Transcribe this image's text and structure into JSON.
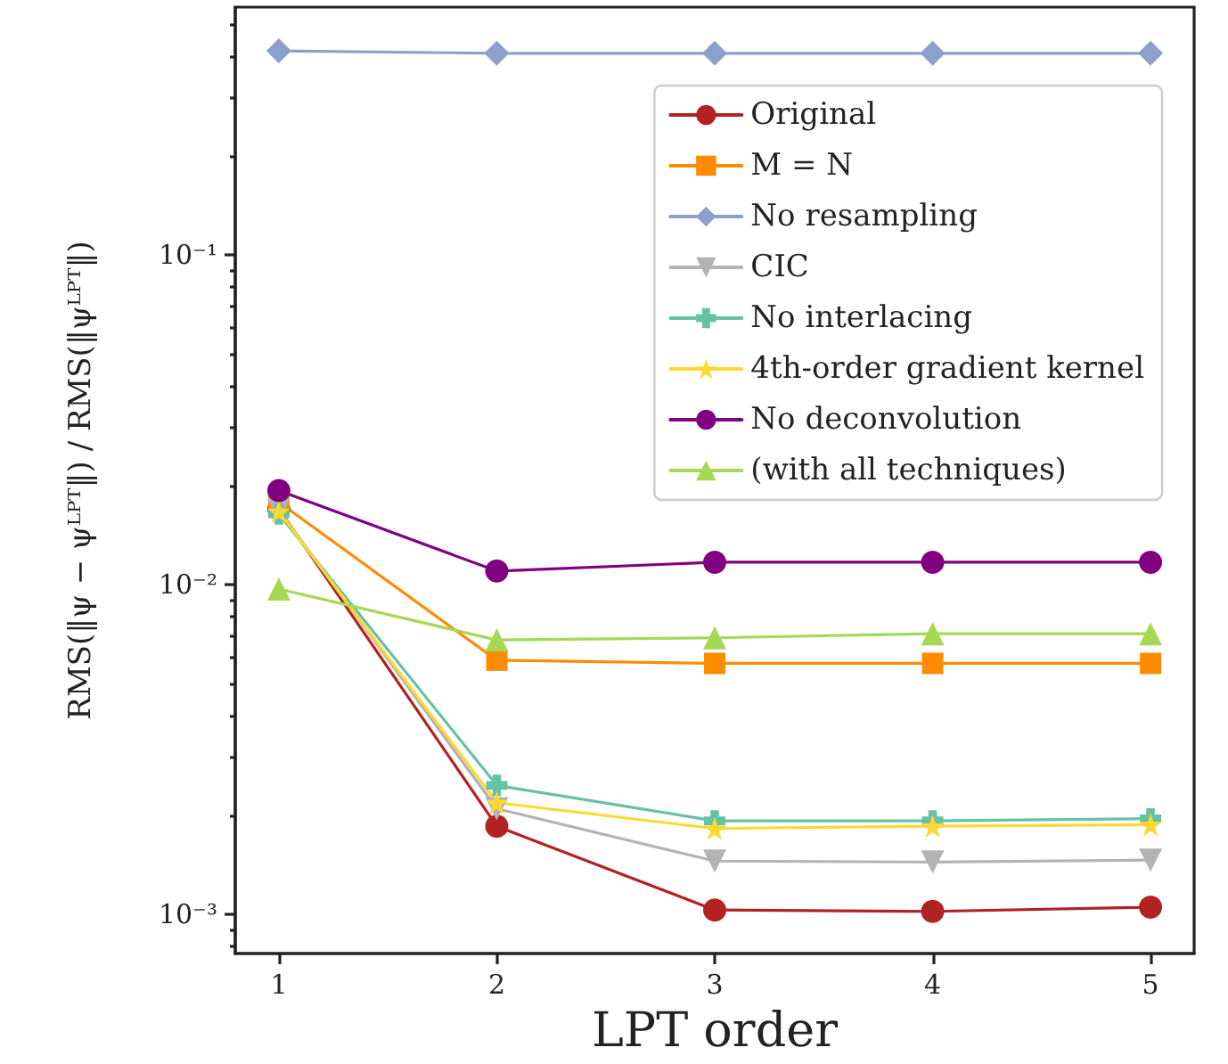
{
  "chart_data": {
    "type": "line",
    "xlabel": "LPT order",
    "ylabel": "RMS(‖ψ − ψᴸᴾᵀ‖) / RMS(‖ψᴸᴾᵀ‖)",
    "x": [
      1,
      2,
      3,
      4,
      5
    ],
    "series": [
      {
        "name": "Original",
        "color": "#b22222",
        "marker": "circle",
        "values": [
          0.017,
          0.00185,
          0.00103,
          0.00102,
          0.00105
        ]
      },
      {
        "name": "M = N",
        "color": "#ff8c00",
        "marker": "square",
        "values": [
          0.0178,
          0.0059,
          0.00577,
          0.00577,
          0.00577
        ]
      },
      {
        "name": "No resampling",
        "color": "#8da0cb",
        "marker": "diamond",
        "values": [
          0.417,
          0.41,
          0.41,
          0.41,
          0.41
        ]
      },
      {
        "name": "CIC",
        "color": "#b3b3b3",
        "marker": "triangle_down",
        "values": [
          0.0169,
          0.00209,
          0.00145,
          0.00144,
          0.00146
        ]
      },
      {
        "name": "No interlacing",
        "color": "#66c2a5",
        "marker": "plus",
        "values": [
          0.0164,
          0.00246,
          0.00192,
          0.00192,
          0.00195
        ]
      },
      {
        "name": "4th-order gradient kernel",
        "color": "#ffd92f",
        "marker": "star",
        "values": [
          0.0167,
          0.00218,
          0.00182,
          0.00185,
          0.00187
        ]
      },
      {
        "name": "No deconvolution",
        "color": "#800080",
        "marker": "circle",
        "values": [
          0.0193,
          0.011,
          0.0117,
          0.0117,
          0.0117
        ]
      },
      {
        "name": "(with all techniques)",
        "color": "#a6d854",
        "marker": "triangle",
        "values": [
          0.0097,
          0.0068,
          0.0069,
          0.0071,
          0.0071
        ]
      }
    ],
    "log": "y",
    "xlim": [
      0.8,
      5.2
    ],
    "xticks": [
      1,
      2,
      3,
      4,
      5
    ],
    "ylim": [
      0.00076,
      0.566
    ],
    "yticks": [
      {
        "value": 0.001,
        "label": "10⁻³"
      },
      {
        "value": 0.01,
        "label": "10⁻²"
      },
      {
        "value": 0.1,
        "label": "10⁻¹"
      }
    ],
    "grid": false,
    "legend": "top right",
    "line_style": "solid"
  }
}
